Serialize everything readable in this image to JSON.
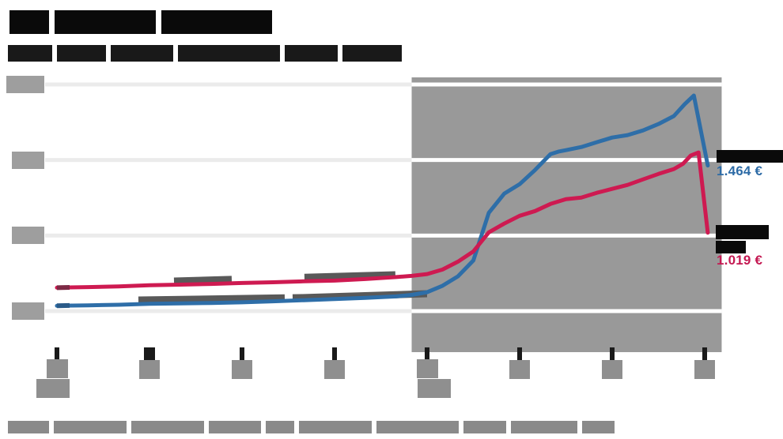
{
  "meta": {
    "note": "Line chart screenshot in which the title, subtitle, axis tick labels, inline series labels and source line are redacted (solid bars). Only the two series end values are legible."
  },
  "header": {
    "title": "[redacted]",
    "subtitle": "[redacted]"
  },
  "footer": {
    "source_note": "[redacted]"
  },
  "end_labels": {
    "blue": {
      "name": "[redacted]",
      "value": "1.464 €"
    },
    "red": {
      "name": "[redacted]",
      "value": "1.019 €"
    }
  },
  "colors": {
    "blue_line": "#2e6ea8",
    "red_line": "#ce1a51",
    "highlight_region": "#999999",
    "grid_light": "#ebebeb",
    "grid_on_highlight": "#ffffff",
    "tick_mark": "#1a1a1a",
    "axis_label_redaction": "#8f8f8f",
    "y_label_redaction": "#9e9e9e",
    "inline_label_redaction": "#595959",
    "blue_value_text": "#2d6ba6",
    "red_value_text": "#c41952"
  },
  "chart_data": {
    "type": "line",
    "title": "[redacted]",
    "subtitle": "[redacted]",
    "x_axis": {
      "tick_months": [
        0,
        3,
        6,
        9,
        12,
        15,
        18,
        21
      ],
      "tick_labels": "[redacted]",
      "two_line_tick_months": [
        0,
        12
      ],
      "wide_tick_mark_month": 3
    },
    "y_axis": {
      "gridline_values_eur_estimated": [
        2000,
        1500,
        1000,
        500
      ],
      "tick_labels": "[redacted]",
      "ylim": [
        375,
        2075
      ],
      "grid": true
    },
    "highlight_region": {
      "x_start_month": 11.5,
      "x_end_month": 21.55
    },
    "legend_position": "end-of-line right labels",
    "series": [
      {
        "id": "blue",
        "name": "[redacted]",
        "color": "#2e6ea8",
        "end_value_label": "1.464 €",
        "points": [
          [
            0,
            535
          ],
          [
            1,
            538
          ],
          [
            2,
            542
          ],
          [
            3,
            548
          ],
          [
            4,
            551
          ],
          [
            5,
            554
          ],
          [
            6,
            558
          ],
          [
            7,
            565
          ],
          [
            8,
            572
          ],
          [
            9,
            580
          ],
          [
            10,
            588
          ],
          [
            11,
            597
          ],
          [
            11.5,
            607
          ],
          [
            12,
            625
          ],
          [
            12.5,
            668
          ],
          [
            13,
            730
          ],
          [
            13.5,
            835
          ],
          [
            14,
            1150
          ],
          [
            14.5,
            1277
          ],
          [
            15,
            1340
          ],
          [
            15.5,
            1434
          ],
          [
            16,
            1539
          ],
          [
            16.25,
            1555
          ],
          [
            16.5,
            1565
          ],
          [
            17,
            1586
          ],
          [
            17.5,
            1618
          ],
          [
            18,
            1649
          ],
          [
            18.5,
            1665
          ],
          [
            19,
            1696
          ],
          [
            19.5,
            1738
          ],
          [
            20,
            1791
          ],
          [
            20.35,
            1870
          ],
          [
            20.65,
            1927
          ],
          [
            21.1,
            1464
          ]
        ]
      },
      {
        "id": "red",
        "name": "[redacted]",
        "color": "#ce1a51",
        "end_value_label": "1.019 €",
        "points": [
          [
            0,
            655
          ],
          [
            1,
            659
          ],
          [
            2,
            663
          ],
          [
            3,
            671
          ],
          [
            4,
            675
          ],
          [
            5,
            680
          ],
          [
            6,
            686
          ],
          [
            7,
            691
          ],
          [
            8,
            697
          ],
          [
            9,
            702
          ],
          [
            10,
            712
          ],
          [
            11,
            725
          ],
          [
            11.5,
            733
          ],
          [
            12,
            745
          ],
          [
            12.5,
            775
          ],
          [
            13,
            827
          ],
          [
            13.5,
            895
          ],
          [
            14,
            1021
          ],
          [
            14.5,
            1079
          ],
          [
            15,
            1131
          ],
          [
            15.5,
            1162
          ],
          [
            16,
            1209
          ],
          [
            16.5,
            1241
          ],
          [
            17,
            1251
          ],
          [
            17.5,
            1283
          ],
          [
            18,
            1309
          ],
          [
            18.5,
            1335
          ],
          [
            19,
            1372
          ],
          [
            19.5,
            1408
          ],
          [
            20,
            1440
          ],
          [
            20.3,
            1476
          ],
          [
            20.55,
            1530
          ],
          [
            20.8,
            1550
          ],
          [
            21.1,
            1019
          ]
        ]
      }
    ]
  }
}
